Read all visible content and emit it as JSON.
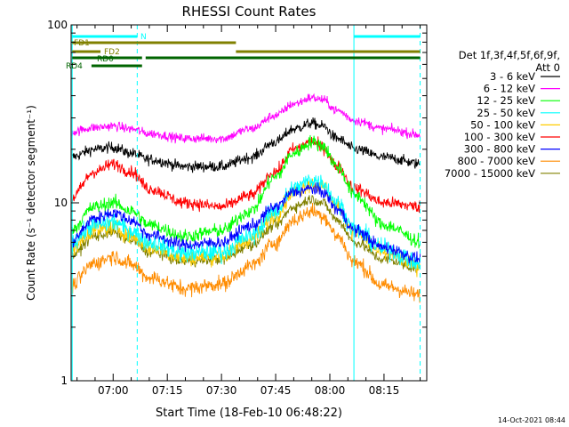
{
  "chart_data": {
    "type": "line",
    "title": "RHESSI Count Rates",
    "xlabel": "Start Time (18-Feb-10 06:48:22)",
    "ylabel": "Count Rate (s⁻¹ detector segment⁻¹)",
    "y_scale": "log",
    "ylim": [
      1,
      100
    ],
    "yticks": [
      {
        "value": 1,
        "label": "1"
      },
      {
        "value": 10,
        "label": "10"
      },
      {
        "value": 100,
        "label": "100"
      }
    ],
    "xlim": [
      "06:48:22",
      "08:26:50"
    ],
    "xticks": [
      {
        "t": "07:00",
        "label": "07:00"
      },
      {
        "t": "07:15",
        "label": "07:15"
      },
      {
        "t": "07:30",
        "label": "07:30"
      },
      {
        "t": "07:45",
        "label": "07:45"
      },
      {
        "t": "08:00",
        "label": "08:00"
      },
      {
        "t": "08:15",
        "label": "08:15"
      }
    ],
    "grid": false,
    "legend_position": "right",
    "legend": {
      "header": "Det 1f,3f,4f,5f,6f,9f,",
      "attenuator": "Att 0"
    },
    "series": [
      {
        "name": "3 - 6 keV",
        "color": "#000000",
        "noise": 0.07,
        "points": [
          [
            "06:48",
            18
          ],
          [
            "06:55",
            20
          ],
          [
            "07:00",
            20.5
          ],
          [
            "07:05",
            19
          ],
          [
            "07:10",
            17.5
          ],
          [
            "07:20",
            16
          ],
          [
            "07:30",
            16
          ],
          [
            "07:38",
            18
          ],
          [
            "07:45",
            22
          ],
          [
            "07:50",
            26
          ],
          [
            "07:55",
            28
          ],
          [
            "07:58",
            27
          ],
          [
            "08:02",
            23
          ],
          [
            "08:07",
            20
          ],
          [
            "08:15",
            18
          ],
          [
            "08:26",
            16.5
          ]
        ]
      },
      {
        "name": "6 - 12 keV",
        "color": "#ff00ff",
        "noise": 0.06,
        "points": [
          [
            "06:48",
            25
          ],
          [
            "06:55",
            26.5
          ],
          [
            "07:00",
            27
          ],
          [
            "07:05",
            26
          ],
          [
            "07:10",
            24.5
          ],
          [
            "07:20",
            23
          ],
          [
            "07:30",
            23
          ],
          [
            "07:38",
            26
          ],
          [
            "07:45",
            31
          ],
          [
            "07:50",
            36
          ],
          [
            "07:55",
            39
          ],
          [
            "07:58",
            38
          ],
          [
            "08:02",
            33
          ],
          [
            "08:07",
            29
          ],
          [
            "08:15",
            26
          ],
          [
            "08:26",
            24
          ]
        ]
      },
      {
        "name": "12 - 25 keV",
        "color": "#00ff00",
        "noise": 0.09,
        "points": [
          [
            "06:48",
            7
          ],
          [
            "06:55",
            9.5
          ],
          [
            "07:00",
            10
          ],
          [
            "07:05",
            9
          ],
          [
            "07:10",
            7.5
          ],
          [
            "07:20",
            6.5
          ],
          [
            "07:30",
            7
          ],
          [
            "07:38",
            9
          ],
          [
            "07:45",
            14
          ],
          [
            "07:50",
            19
          ],
          [
            "07:55",
            22
          ],
          [
            "07:58",
            21
          ],
          [
            "08:02",
            16
          ],
          [
            "08:07",
            11
          ],
          [
            "08:15",
            7.5
          ],
          [
            "08:26",
            6
          ]
        ]
      },
      {
        "name": "25 - 50 keV",
        "color": "#00ffff",
        "noise": 0.12,
        "points": [
          [
            "06:48",
            6
          ],
          [
            "06:55",
            7.5
          ],
          [
            "07:00",
            7.8
          ],
          [
            "07:05",
            7
          ],
          [
            "07:10",
            6
          ],
          [
            "07:20",
            5.2
          ],
          [
            "07:30",
            5.3
          ],
          [
            "07:38",
            6.5
          ],
          [
            "07:45",
            9
          ],
          [
            "07:50",
            12
          ],
          [
            "07:55",
            13.5
          ],
          [
            "07:58",
            13
          ],
          [
            "08:02",
            10
          ],
          [
            "08:07",
            7
          ],
          [
            "08:15",
            5.5
          ],
          [
            "08:26",
            4.5
          ]
        ]
      },
      {
        "name": "50 - 100 keV",
        "color": "#ffcc00",
        "noise": 0.1,
        "points": [
          [
            "06:48",
            5.5
          ],
          [
            "06:55",
            7
          ],
          [
            "07:00",
            7.3
          ],
          [
            "07:05",
            6.5
          ],
          [
            "07:10",
            5.6
          ],
          [
            "07:20",
            4.9
          ],
          [
            "07:30",
            5
          ],
          [
            "07:38",
            6.2
          ],
          [
            "07:45",
            8.5
          ],
          [
            "07:50",
            11.5
          ],
          [
            "07:55",
            12.8
          ],
          [
            "07:58",
            12.3
          ],
          [
            "08:02",
            9.5
          ],
          [
            "08:07",
            6.8
          ],
          [
            "08:15",
            5.2
          ],
          [
            "08:26",
            4.3
          ]
        ]
      },
      {
        "name": "100 - 300 keV",
        "color": "#ff0000",
        "noise": 0.08,
        "points": [
          [
            "06:48",
            10.5
          ],
          [
            "06:55",
            15
          ],
          [
            "07:00",
            16.5
          ],
          [
            "07:05",
            15
          ],
          [
            "07:10",
            12
          ],
          [
            "07:20",
            10
          ],
          [
            "07:30",
            9.5
          ],
          [
            "07:38",
            11
          ],
          [
            "07:45",
            15
          ],
          [
            "07:50",
            20
          ],
          [
            "07:55",
            22
          ],
          [
            "07:58",
            20.5
          ],
          [
            "08:02",
            16
          ],
          [
            "08:07",
            12
          ],
          [
            "08:15",
            10
          ],
          [
            "08:26",
            9.5
          ]
        ]
      },
      {
        "name": "300 - 800 keV",
        "color": "#0000ff",
        "noise": 0.08,
        "points": [
          [
            "06:48",
            6
          ],
          [
            "06:55",
            8.2
          ],
          [
            "07:00",
            8.8
          ],
          [
            "07:05",
            8
          ],
          [
            "07:10",
            6.6
          ],
          [
            "07:20",
            5.8
          ],
          [
            "07:30",
            6
          ],
          [
            "07:38",
            7.4
          ],
          [
            "07:45",
            9.5
          ],
          [
            "07:50",
            11.5
          ],
          [
            "07:55",
            12
          ],
          [
            "07:58",
            11.5
          ],
          [
            "08:02",
            9.2
          ],
          [
            "08:07",
            7
          ],
          [
            "08:15",
            5.6
          ],
          [
            "08:26",
            4.8
          ]
        ]
      },
      {
        "name": "800 - 7000 keV",
        "color": "#ff8c00",
        "noise": 0.1,
        "points": [
          [
            "06:48",
            3.4
          ],
          [
            "06:55",
            4.6
          ],
          [
            "07:00",
            5
          ],
          [
            "07:05",
            4.5
          ],
          [
            "07:10",
            3.8
          ],
          [
            "07:20",
            3.3
          ],
          [
            "07:30",
            3.5
          ],
          [
            "07:38",
            4.4
          ],
          [
            "07:45",
            6
          ],
          [
            "07:50",
            8
          ],
          [
            "07:55",
            9
          ],
          [
            "07:58",
            8.5
          ],
          [
            "08:02",
            6.5
          ],
          [
            "08:07",
            4.6
          ],
          [
            "08:15",
            3.4
          ],
          [
            "08:26",
            3
          ]
        ]
      },
      {
        "name": "7000 - 15000 keV",
        "color": "#808000",
        "noise": 0.07,
        "points": [
          [
            "06:48",
            5
          ],
          [
            "06:55",
            6.5
          ],
          [
            "07:00",
            6.8
          ],
          [
            "07:05",
            6.2
          ],
          [
            "07:10",
            5.3
          ],
          [
            "07:20",
            4.7
          ],
          [
            "07:30",
            4.8
          ],
          [
            "07:38",
            5.8
          ],
          [
            "07:45",
            7.5
          ],
          [
            "07:50",
            9.5
          ],
          [
            "07:55",
            10.5
          ],
          [
            "07:58",
            10
          ],
          [
            "08:02",
            8
          ],
          [
            "08:07",
            6
          ],
          [
            "08:15",
            4.8
          ],
          [
            "08:26",
            4.2
          ]
        ]
      }
    ],
    "vertical_markers": [
      {
        "t": "06:48:40",
        "style": "solid",
        "color": "#00ffff"
      },
      {
        "t": "07:06:40",
        "style": "dashed",
        "color": "#00ffff"
      },
      {
        "t": "08:06:40",
        "style": "solid",
        "color": "#00ffff"
      },
      {
        "t": "08:25:00",
        "style": "dashed",
        "color": "#00ffff"
      }
    ],
    "flag_bars": [
      {
        "label": "N",
        "color": "#00ffff",
        "level": 0,
        "segments": [
          [
            "06:48:40",
            "07:06:40"
          ],
          [
            "08:06:40",
            "08:25:00"
          ]
        ]
      },
      {
        "label": "FD1",
        "color": "#808000",
        "level": 1,
        "segments": [
          [
            "06:48:40",
            "07:34:00"
          ]
        ]
      },
      {
        "label": "FD2",
        "color": "#808000",
        "level": 2,
        "segments": [
          [
            "06:48:40",
            "06:56:30"
          ],
          [
            "07:34:00",
            "08:25:00"
          ]
        ]
      },
      {
        "label": "RD0",
        "color": "#006400",
        "level": 3,
        "segments": [
          [
            "06:48:40",
            "07:08:00"
          ],
          [
            "07:09:00",
            "08:25:00"
          ]
        ]
      },
      {
        "label": "RD4",
        "color": "#006400",
        "level": 4,
        "segments": [
          [
            "06:54:00",
            "07:08:00"
          ]
        ]
      }
    ]
  },
  "footer": {
    "timestamp": "14-Oct-2021 08:44"
  }
}
